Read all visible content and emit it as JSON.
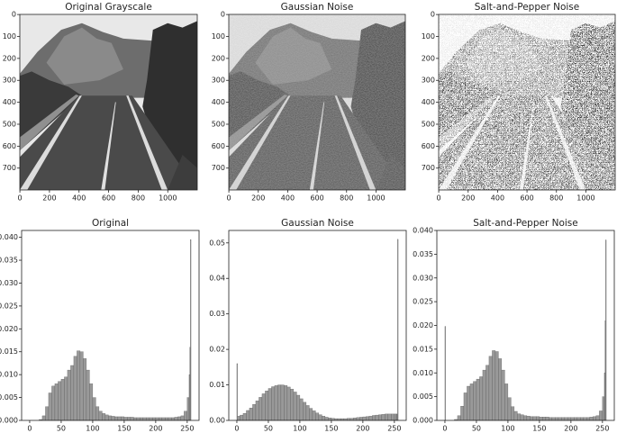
{
  "chart_data": [
    {
      "type": "image",
      "title": "Original Grayscale",
      "xlim": [
        -0.5,
        1199.5
      ],
      "ylim": [
        799.5,
        -0.5
      ],
      "xticks": [
        0,
        200,
        400,
        600,
        800,
        1000
      ],
      "yticks": [
        0,
        100,
        200,
        300,
        400,
        500,
        600,
        700
      ]
    },
    {
      "type": "image",
      "title": "Gaussian Noise",
      "xlim": [
        -0.5,
        1199.5
      ],
      "ylim": [
        799.5,
        -0.5
      ],
      "xticks": [
        0,
        200,
        400,
        600,
        800,
        1000
      ],
      "yticks": [
        0,
        100,
        200,
        300,
        400,
        500,
        600,
        700
      ],
      "noise": "gaussian"
    },
    {
      "type": "image",
      "title": "Salt-and-Pepper Noise",
      "xlim": [
        -0.5,
        1199.5
      ],
      "ylim": [
        799.5,
        -0.5
      ],
      "xticks": [
        0,
        200,
        400,
        600,
        800,
        1000
      ],
      "yticks": [
        0,
        100,
        200,
        300,
        400,
        500,
        600,
        700
      ],
      "noise": "salt-and-pepper"
    },
    {
      "type": "histogram",
      "title": "Original",
      "color": "#999999",
      "bins": [
        0,
        1,
        5,
        10,
        15,
        20,
        25,
        30,
        35,
        40,
        45,
        50,
        55,
        60,
        65,
        70,
        75,
        80,
        85,
        90,
        95,
        100,
        105,
        110,
        115,
        120,
        125,
        130,
        135,
        140,
        145,
        150,
        155,
        160,
        165,
        170,
        175,
        180,
        185,
        190,
        195,
        200,
        205,
        210,
        215,
        220,
        225,
        230,
        235,
        240,
        245,
        250,
        253,
        254,
        255,
        256
      ],
      "values": [
        0,
        0,
        0,
        0,
        0.0002,
        0.001,
        0.003,
        0.006,
        0.0075,
        0.008,
        0.0085,
        0.009,
        0.0095,
        0.011,
        0.012,
        0.014,
        0.0152,
        0.015,
        0.0135,
        0.011,
        0.008,
        0.005,
        0.003,
        0.002,
        0.0015,
        0.0012,
        0.001,
        0.0009,
        0.0008,
        0.0008,
        0.0008,
        0.0007,
        0.0007,
        0.0007,
        0.0006,
        0.0006,
        0.0006,
        0.0006,
        0.0006,
        0.0006,
        0.0006,
        0.0006,
        0.0006,
        0.0006,
        0.0006,
        0.0006,
        0.0006,
        0.0007,
        0.0008,
        0.001,
        0.002,
        0.005,
        0.01,
        0.016,
        0.0395
      ],
      "xlim": [
        -12.8,
        268.8
      ],
      "ylim": [
        0,
        0.0415
      ],
      "xticks": [
        0,
        50,
        100,
        150,
        200,
        250
      ],
      "yticks": [
        {
          "value": 0,
          "label": "0.000"
        },
        {
          "value": 0.005,
          "label": "0.005"
        },
        {
          "value": 0.01,
          "label": "0.010"
        },
        {
          "value": 0.015,
          "label": "0.015"
        },
        {
          "value": 0.02,
          "label": "0.020"
        },
        {
          "value": 0.025,
          "label": "0.025"
        },
        {
          "value": 0.03,
          "label": "0.030"
        },
        {
          "value": 0.035,
          "label": "0.035"
        },
        {
          "value": 0.04,
          "label": "0.040"
        }
      ]
    },
    {
      "type": "histogram",
      "title": "Gaussian Noise",
      "color": "#999999",
      "bins": [
        0,
        1,
        5,
        10,
        15,
        20,
        25,
        30,
        35,
        40,
        45,
        50,
        55,
        60,
        65,
        70,
        75,
        80,
        85,
        90,
        95,
        100,
        105,
        110,
        115,
        120,
        125,
        130,
        135,
        140,
        145,
        150,
        155,
        160,
        165,
        170,
        175,
        180,
        185,
        190,
        195,
        200,
        205,
        210,
        215,
        220,
        225,
        230,
        235,
        240,
        245,
        250,
        253,
        254,
        255,
        256
      ],
      "values": [
        0.016,
        0.0012,
        0.0015,
        0.002,
        0.0028,
        0.0035,
        0.0045,
        0.0055,
        0.0065,
        0.0075,
        0.0083,
        0.009,
        0.0095,
        0.0098,
        0.01,
        0.01,
        0.0098,
        0.0094,
        0.0088,
        0.008,
        0.0071,
        0.0061,
        0.0051,
        0.0042,
        0.0034,
        0.0027,
        0.0021,
        0.0016,
        0.0012,
        0.0009,
        0.0007,
        0.0006,
        0.0005,
        0.0005,
        0.0005,
        0.0005,
        0.0006,
        0.0006,
        0.0007,
        0.0008,
        0.0009,
        0.001,
        0.0011,
        0.0012,
        0.0014,
        0.0015,
        0.0016,
        0.0017,
        0.0018,
        0.0018,
        0.0018,
        0.0018,
        0.0018,
        0.0018,
        0.051
      ],
      "xlim": [
        -12.8,
        268.8
      ],
      "ylim": [
        0,
        0.0535
      ],
      "xticks": [
        0,
        50,
        100,
        150,
        200,
        250
      ],
      "yticks": [
        {
          "value": 0,
          "label": "0.00"
        },
        {
          "value": 0.01,
          "label": "0.01"
        },
        {
          "value": 0.02,
          "label": "0.02"
        },
        {
          "value": 0.03,
          "label": "0.03"
        },
        {
          "value": 0.04,
          "label": "0.04"
        },
        {
          "value": 0.05,
          "label": "0.05"
        }
      ]
    },
    {
      "type": "histogram",
      "title": "Salt-and-Pepper Noise",
      "color": "#999999",
      "bins": [
        0,
        1,
        5,
        10,
        15,
        20,
        25,
        30,
        35,
        40,
        45,
        50,
        55,
        60,
        65,
        70,
        75,
        80,
        85,
        90,
        95,
        100,
        105,
        110,
        115,
        120,
        125,
        130,
        135,
        140,
        145,
        150,
        155,
        160,
        165,
        170,
        175,
        180,
        185,
        190,
        195,
        200,
        205,
        210,
        215,
        220,
        225,
        230,
        235,
        240,
        245,
        250,
        253,
        254,
        255,
        256
      ],
      "values": [
        0.0198,
        0,
        0,
        0,
        0.0002,
        0.001,
        0.003,
        0.0058,
        0.0072,
        0.0077,
        0.0082,
        0.0087,
        0.0092,
        0.0106,
        0.0116,
        0.0135,
        0.0147,
        0.0145,
        0.013,
        0.0106,
        0.0077,
        0.0048,
        0.0029,
        0.0019,
        0.0014,
        0.0012,
        0.001,
        0.0009,
        0.0008,
        0.0008,
        0.0008,
        0.0007,
        0.0007,
        0.0007,
        0.0006,
        0.0006,
        0.0006,
        0.0006,
        0.0006,
        0.0006,
        0.0006,
        0.0006,
        0.0006,
        0.0006,
        0.0006,
        0.0006,
        0.0006,
        0.0007,
        0.0008,
        0.001,
        0.002,
        0.005,
        0.01,
        0.021,
        0.038
      ],
      "xlim": [
        -12.8,
        268.8
      ],
      "ylim": [
        0,
        0.04
      ],
      "xticks": [
        0,
        50,
        100,
        150,
        200,
        250
      ],
      "yticks": [
        {
          "value": 0,
          "label": "0.000"
        },
        {
          "value": 0.005,
          "label": "0.005"
        },
        {
          "value": 0.01,
          "label": "0.010"
        },
        {
          "value": 0.015,
          "label": "0.015"
        },
        {
          "value": 0.02,
          "label": "0.020"
        },
        {
          "value": 0.025,
          "label": "0.025"
        },
        {
          "value": 0.03,
          "label": "0.030"
        },
        {
          "value": 0.035,
          "label": "0.035"
        },
        {
          "value": 0.04,
          "label": "0.040"
        }
      ]
    }
  ]
}
